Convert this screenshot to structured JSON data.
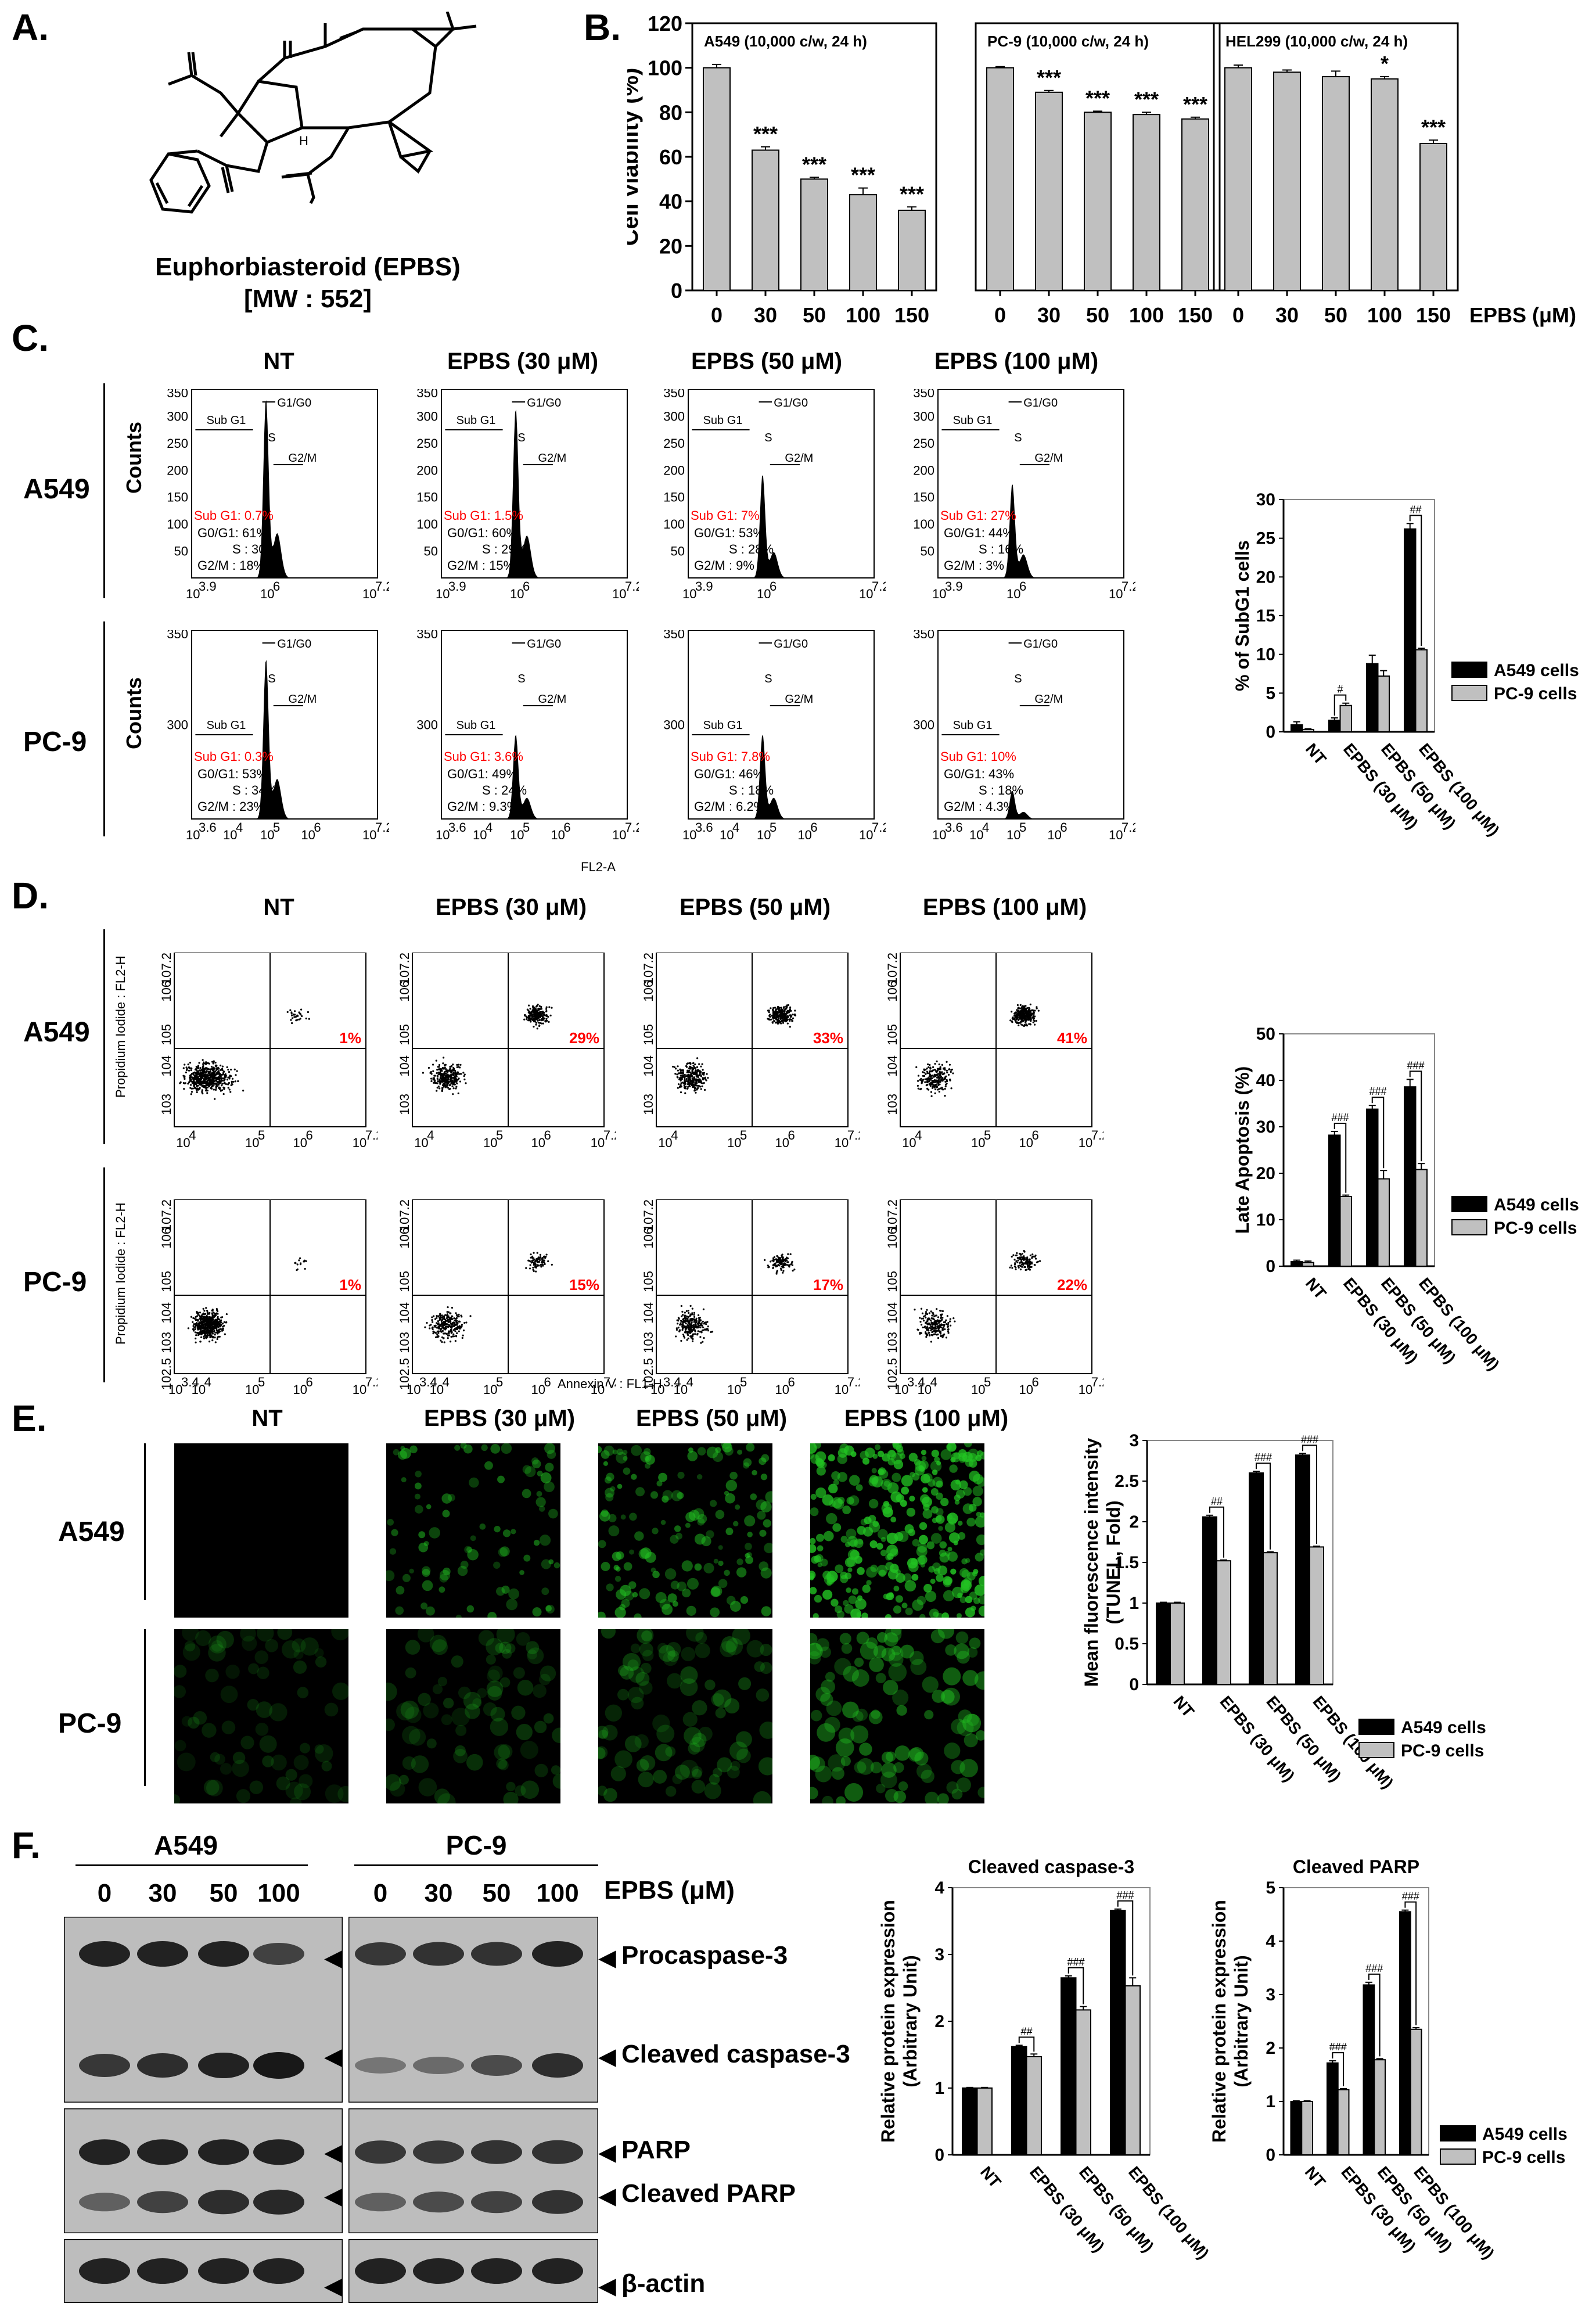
{
  "panels": {
    "A": "A.",
    "B": "B.",
    "C": "C.",
    "D": "D.",
    "E": "E.",
    "F": "F."
  },
  "panel_a": {
    "compound_name": "Euphorbiasteroid (EPBS)",
    "mw": "[MW : 552]",
    "stereo_label": "H"
  },
  "panel_b": {
    "ylabel": "Cell viability (%)",
    "treatment_label": "EPBS (μM)",
    "yticks": [
      "0",
      "20",
      "40",
      "60",
      "80",
      "100",
      "120"
    ],
    "ylim": [
      0,
      120
    ],
    "categories": [
      "0",
      "30",
      "50",
      "100",
      "150"
    ]
  },
  "panel_c": {
    "columns": [
      "NT",
      "EPBS (30 μM)",
      "EPBS (50 μM)",
      "EPBS (100 μM)"
    ],
    "rows": [
      "A549",
      "PC-9"
    ],
    "ylabel": "Counts",
    "yticks_top": [
      "50",
      "100",
      "150",
      "200",
      "250",
      "300",
      "350"
    ],
    "yticks_bottom": [
      "300",
      "350"
    ],
    "gate_labels": {
      "g1": "G1/G0",
      "s": "S",
      "g2": "G2/M",
      "sub": "Sub G1"
    },
    "x_axis_a549": [
      "10",
      "3.9",
      "10",
      "6",
      "10",
      "7.2"
    ],
    "x_axis_pc9": [
      "10",
      "3.6",
      "10",
      "4",
      "10",
      "5",
      "10",
      "6",
      "10",
      "7.2"
    ],
    "xlabel": "FL2-A",
    "stats": {
      "A549": [
        {
          "sub": "Sub G1: 0.7%",
          "g0": "G0/G1: 61%",
          "s": "S : 30%",
          "g2": "G2/M : 18%"
        },
        {
          "sub": "Sub G1: 1.5%",
          "g0": "G0/G1: 60%",
          "s": "S : 29%",
          "g2": "G2/M : 15%"
        },
        {
          "sub": "Sub G1:  7%",
          "g0": "G0/G1: 53%",
          "s": "S : 28%",
          "g2": "G2/M :  9%"
        },
        {
          "sub": "Sub G1:  27%",
          "g0": "G0/G1: 44%",
          "s": "S : 16%",
          "g2": "G2/M :  3%"
        }
      ],
      "PC-9": [
        {
          "sub": "Sub G1: 0.3%",
          "g0": "G0/G1: 53%",
          "s": "S : 34%",
          "g2": "G2/M : 23%"
        },
        {
          "sub": "Sub G1: 3.6%",
          "g0": "G0/G1: 49%",
          "s": "S : 24%",
          "g2": "G2/M : 9.3%"
        },
        {
          "sub": "Sub G1: 7.8%",
          "g0": "G0/G1: 46%",
          "s": "S : 18%",
          "g2": "G2/M : 6.2%"
        },
        {
          "sub": "Sub G1:  10%",
          "g0": "G0/G1: 43%",
          "s": "S : 18%",
          "g2": "G2/M : 4.3%"
        }
      ]
    }
  },
  "panel_d": {
    "columns": [
      "NT",
      "EPBS (30 μM)",
      "EPBS (50 μM)",
      "EPBS (100 μM)"
    ],
    "rows": [
      "A549",
      "PC-9"
    ],
    "ylabel": "Propidium Iodide : FL2-H",
    "xlabel": "Annexin V : FL1-H",
    "percent": {
      "A549": [
        "1%",
        "29%",
        "33%",
        "41%"
      ],
      "PC-9": [
        "1%",
        "15%",
        "17%",
        "22%"
      ]
    }
  },
  "panel_e": {
    "columns": [
      "NT",
      "EPBS (30 μM)",
      "EPBS (50 μM)",
      "EPBS (100 μM)"
    ],
    "rows": [
      "A549",
      "PC-9"
    ]
  },
  "panel_f": {
    "cell_a549": "A549",
    "cell_pc9": "PC-9",
    "lanes": [
      "0",
      "30",
      "50",
      "100"
    ],
    "treatment_label": "EPBS (μM)",
    "bands": [
      "Procaspase-3",
      "Cleaved caspase-3",
      "PARP",
      "Cleaved PARP",
      "β-actin"
    ]
  },
  "legend": {
    "a549": "A549 cells",
    "pc9": "PC-9 cells"
  },
  "colors": {
    "a549": "#000000",
    "pc9": "#c0c0c0",
    "bar_b": "#c0c0c0",
    "highlight": "#ff0000",
    "fluor": "#22c322"
  },
  "chart_data": [
    {
      "type": "bar",
      "panel": "B",
      "title": "A549 (10,000 c/w, 24 h)",
      "categories": [
        "0",
        "30",
        "50",
        "100",
        "150"
      ],
      "values": [
        100,
        63,
        50,
        43,
        36
      ],
      "errors": [
        1.5,
        1.5,
        0.8,
        3,
        1.5
      ],
      "significance": [
        "",
        "***",
        "***",
        "***",
        "***"
      ],
      "ylabel": "Cell viability (%)",
      "ylim": [
        0,
        120
      ]
    },
    {
      "type": "bar",
      "panel": "B",
      "title": "PC-9 (10,000 c/w, 24 h)",
      "categories": [
        "0",
        "30",
        "50",
        "100",
        "150"
      ],
      "values": [
        100,
        89,
        80,
        79,
        77
      ],
      "errors": [
        0.5,
        0.8,
        0.5,
        1,
        0.8
      ],
      "significance": [
        "",
        "***",
        "***",
        "***",
        "***"
      ],
      "ylim": [
        0,
        120
      ]
    },
    {
      "type": "bar",
      "panel": "B",
      "title": "HEL299 (10,000 c/w, 24 h)",
      "categories": [
        "0",
        "30",
        "50",
        "100",
        "150"
      ],
      "values": [
        100,
        98,
        96,
        95,
        66
      ],
      "errors": [
        1.2,
        1,
        2.5,
        1,
        1.5
      ],
      "significance": [
        "",
        "",
        "",
        "*",
        "***"
      ],
      "xlabel": "EPBS (μM)",
      "ylim": [
        0,
        120
      ]
    },
    {
      "type": "bar",
      "panel": "C",
      "categories": [
        "NT",
        "EPBS (30 μM)",
        "EPBS (50 μM)",
        "EPBS (100 μM)"
      ],
      "series": [
        {
          "name": "A549 cells",
          "values": [
            0.9,
            1.5,
            8.8,
            26.2
          ]
        },
        {
          "name": "PC-9 cells",
          "values": [
            0.3,
            3.4,
            7.2,
            10.6
          ]
        }
      ],
      "errors": [
        [
          0.4,
          0.3,
          1.1,
          0.7
        ],
        [
          0.1,
          0.3,
          0.7,
          0.2
        ]
      ],
      "significance": [
        "",
        "#",
        "",
        "##"
      ],
      "ylabel": "% of SubG1 cells",
      "yticks": [
        "0",
        "5",
        "10",
        "15",
        "20",
        "25",
        "30"
      ],
      "ylim": [
        0,
        30
      ]
    },
    {
      "type": "bar",
      "panel": "D",
      "categories": [
        "NT",
        "EPBS (30 μM)",
        "EPBS (50 μM)",
        "EPBS (100 μM)"
      ],
      "series": [
        {
          "name": "A549 cells",
          "values": [
            1.0,
            28.2,
            33.8,
            38.6
          ]
        },
        {
          "name": "PC-9 cells",
          "values": [
            0.8,
            15.0,
            18.8,
            20.8
          ]
        }
      ],
      "errors": [
        [
          0.3,
          0.8,
          0.8,
          1.6
        ],
        [
          0.3,
          0.3,
          1.8,
          1.3
        ]
      ],
      "significance": [
        "",
        "###",
        "###",
        "###"
      ],
      "ylabel": "Late Apoptosis (%)",
      "yticks": [
        "0",
        "10",
        "20",
        "30",
        "40",
        "50"
      ],
      "ylim": [
        0,
        50
      ]
    },
    {
      "type": "bar",
      "panel": "E",
      "categories": [
        "NT",
        "EPBS (30 μM)",
        "EPBS (50 μM)",
        "EPBS (100 μM)"
      ],
      "series": [
        {
          "name": "A549 cells",
          "values": [
            1.0,
            2.06,
            2.6,
            2.82
          ]
        },
        {
          "name": "PC-9 cells",
          "values": [
            1.0,
            1.52,
            1.62,
            1.69
          ]
        }
      ],
      "errors": [
        [
          0.01,
          0.02,
          0.02,
          0.02
        ],
        [
          0.01,
          0.01,
          0.01,
          0.01
        ]
      ],
      "significance": [
        "",
        "##",
        "###",
        "###"
      ],
      "ylabel": "Mean fluorescence intensity (TUNEL, Fold)",
      "yticks": [
        "0",
        "0.5",
        "1",
        "1.5",
        "2",
        "2.5",
        "3"
      ],
      "ylim": [
        0,
        3
      ]
    },
    {
      "type": "bar",
      "panel": "F",
      "title": "Cleaved caspase-3",
      "categories": [
        "NT",
        "EPBS (30 μM)",
        "EPBS (50 μM)",
        "EPBS (100 μM)"
      ],
      "series": [
        {
          "name": "A549 cells",
          "values": [
            1.0,
            1.62,
            2.65,
            3.66
          ]
        },
        {
          "name": "PC-9 cells",
          "values": [
            1.0,
            1.47,
            2.17,
            2.53
          ]
        }
      ],
      "errors": [
        [
          0.01,
          0.02,
          0.03,
          0.02
        ],
        [
          0.01,
          0.04,
          0.05,
          0.12
        ]
      ],
      "significance": [
        "",
        "##",
        "###",
        "###"
      ],
      "ylabel": "Relative protein expression (Arbitrary Unit)",
      "yticks": [
        "0",
        "1",
        "2",
        "3",
        "4"
      ],
      "ylim": [
        0,
        4
      ]
    },
    {
      "type": "bar",
      "panel": "F",
      "title": "Cleaved PARP",
      "categories": [
        "NT",
        "EPBS (30 μM)",
        "EPBS (50 μM)",
        "EPBS (100 μM)"
      ],
      "series": [
        {
          "name": "A549 cells",
          "values": [
            1.0,
            1.72,
            3.18,
            4.55
          ]
        },
        {
          "name": "PC-9 cells",
          "values": [
            1.0,
            1.22,
            1.78,
            2.35
          ]
        }
      ],
      "errors": [
        [
          0.01,
          0.04,
          0.05,
          0.03
        ],
        [
          0.01,
          0.02,
          0.02,
          0.03
        ]
      ],
      "significance": [
        "",
        "###",
        "###",
        "###"
      ],
      "ylabel": "Relative protein expression (Arbitrary Unit)",
      "yticks": [
        "0",
        "1",
        "2",
        "3",
        "4",
        "5"
      ],
      "ylim": [
        0,
        5
      ]
    }
  ]
}
